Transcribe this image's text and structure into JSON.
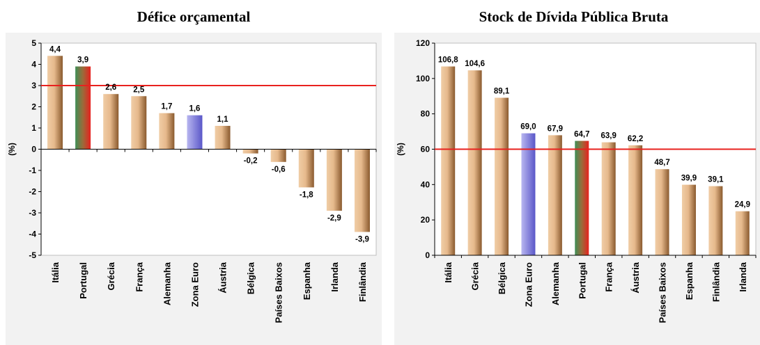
{
  "colors": {
    "bar_gradient_light": "#f0cda6",
    "bar_gradient_dark": "#8a5a2e",
    "portugal_green": "#3f8f57",
    "portugal_red": "#e8211e",
    "zona_euro_light": "#b8b6f0",
    "zona_euro_dark": "#5a57c8",
    "reference_line": "#e8211e",
    "panel_background": "#f2f2f2"
  },
  "chart_data": [
    {
      "type": "bar",
      "title": "Défice orçamental",
      "xlabel": "",
      "ylabel": "(%)",
      "ylim": [
        -5,
        5
      ],
      "yticks": [
        5,
        4,
        3,
        2,
        1,
        0,
        -1,
        -2,
        -3,
        -4,
        -5
      ],
      "ytick_labels": [
        "5",
        "4",
        "3",
        "2",
        "1",
        "0",
        "-1",
        "-2",
        "-3",
        "-4",
        "-5"
      ],
      "reference_line": 3,
      "categories": [
        "Itália",
        "Portugal",
        "Grécia",
        "França",
        "Alemanha",
        "Zona Euro",
        "Áustria",
        "Bélgica",
        "Países Baixos",
        "Espanha",
        "Irlanda",
        "Finlândia"
      ],
      "values": [
        4.4,
        3.9,
        2.6,
        2.5,
        1.7,
        1.6,
        1.1,
        -0.2,
        -0.6,
        -1.8,
        -2.9,
        -3.9
      ],
      "value_labels": [
        "4,4",
        "3,9",
        "2,6",
        "2,5",
        "1,7",
        "1,6",
        "1,1",
        "-0,2",
        "-0,6",
        "-1,8",
        "-2,9",
        "-3,9"
      ],
      "highlight": {
        "Portugal": "portugal",
        "Zona Euro": "zona_euro"
      },
      "grid": false,
      "legend": "none"
    },
    {
      "type": "bar",
      "title": "Stock de Dívida Pública Bruta",
      "xlabel": "",
      "ylabel": "(%)",
      "ylim": [
        0,
        120
      ],
      "yticks": [
        120,
        100,
        80,
        60,
        40,
        20,
        0
      ],
      "ytick_labels": [
        "120",
        "100",
        "80",
        "60",
        "40",
        "20",
        "0"
      ],
      "reference_line": 60,
      "categories": [
        "Itália",
        "Grécia",
        "Bélgica",
        "Zona Euro",
        "Alemanha",
        "Portugal",
        "França",
        "Áustria",
        "Países Baixos",
        "Espanha",
        "Finlândia",
        "Irlanda"
      ],
      "values": [
        106.8,
        104.6,
        89.1,
        69.0,
        67.9,
        64.7,
        63.9,
        62.2,
        48.7,
        39.9,
        39.1,
        24.9
      ],
      "value_labels": [
        "106,8",
        "104,6",
        "89,1",
        "69,0",
        "67,9",
        "64,7",
        "63,9",
        "62,2",
        "48,7",
        "39,9",
        "39,1",
        "24,9"
      ],
      "highlight": {
        "Portugal": "portugal",
        "Zona Euro": "zona_euro"
      },
      "grid": false,
      "legend": "none"
    }
  ]
}
